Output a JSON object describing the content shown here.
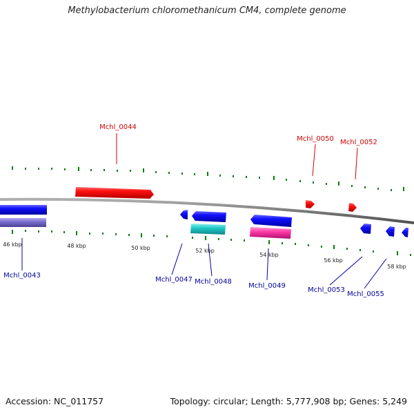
{
  "title": "Methylobacterium chloromethanicum CM4, complete genome",
  "footer": {
    "accession": "Accession: NC_011757",
    "summary": "Topology: circular; Length: 5,777,908 bp; Genes: 5,249"
  },
  "colors": {
    "forward": "#ff0000",
    "reverse": "#0000ff",
    "label_forward": "#cc0000",
    "label_reverse": "#000099",
    "backbone": "#808080",
    "tick": "#008000",
    "cds_purple": "#7b6fd0",
    "cds_cyan": "#20c8c8",
    "cds_magenta": "#ff3aa8"
  },
  "tick_labels": [
    "46 kbp",
    "48 kbp",
    "50 kbp",
    "52 kbp",
    "54 kbp",
    "56 kbp",
    "58 kbp"
  ],
  "gene_labels": {
    "forward": [
      "Mchl_0044",
      "Mchl_0050",
      "Mchl_0052"
    ],
    "reverse": [
      "Mchl_0043",
      "Mchl_0047",
      "Mchl_0048",
      "Mchl_0049",
      "Mchl_0053",
      "Mchl_0055"
    ]
  }
}
